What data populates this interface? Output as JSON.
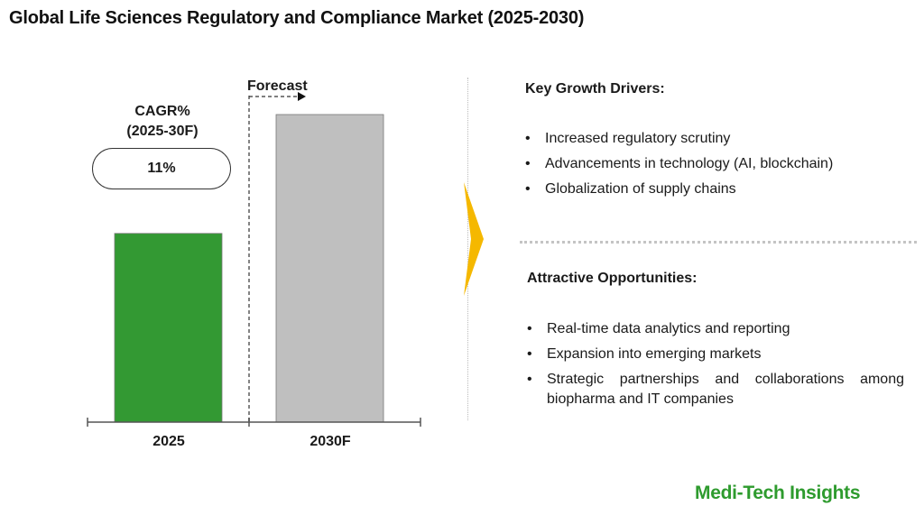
{
  "header": {
    "title": "Global Life Sciences Regulatory and Compliance Market (2025-2030)"
  },
  "chart_data": {
    "type": "bar",
    "categories": [
      "2025",
      "2030F"
    ],
    "values": [
      1.0,
      1.63
    ],
    "colors": [
      "#339933",
      "#bfbfbf"
    ],
    "title": "",
    "xlabel": "",
    "ylabel": "",
    "ylim": [
      0,
      1.63
    ],
    "grid": false,
    "annotations": {
      "cagr_label_line1": "CAGR%",
      "cagr_label_line2": "(2025-30F)",
      "cagr_value": "11%",
      "forecast_label": "Forecast"
    }
  },
  "growth_drivers": {
    "title": "Key Growth Drivers:",
    "items": [
      "Increased regulatory scrutiny",
      "Advancements in technology (AI, blockchain)",
      "Globalization of supply chains"
    ]
  },
  "opportunities": {
    "title": "Attractive Opportunities:",
    "items": [
      "Real-time data analytics and reporting",
      "Expansion into emerging markets",
      "Strategic partnerships and collaborations among biopharma and IT companies"
    ]
  },
  "brand": {
    "name": "Medi-Tech Insights"
  },
  "colors": {
    "arrow": "#f5b800",
    "brand": "#2e9b2e"
  }
}
